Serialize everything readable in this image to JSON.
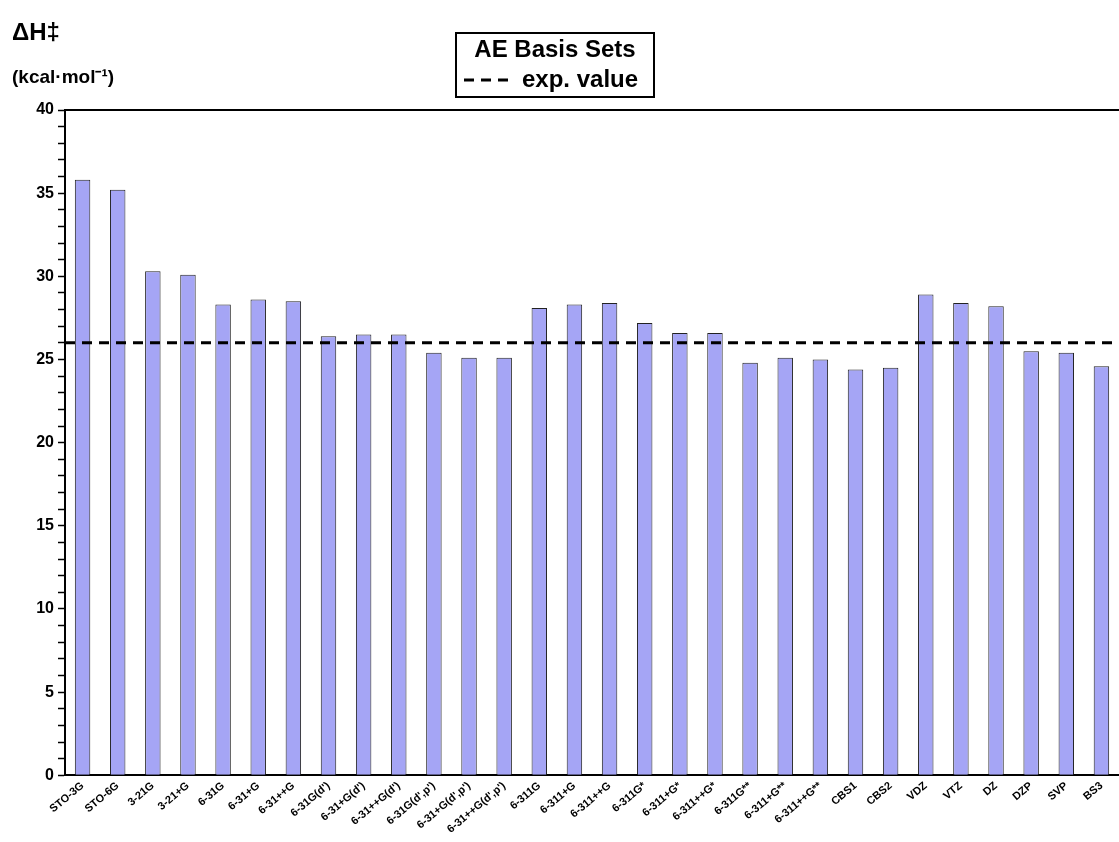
{
  "chart_data": {
    "type": "bar",
    "legend_title": "AE Basis Sets",
    "ylabel": "ΔH‡ (kcal·mol⁻¹)",
    "categories": [
      "STO-3G",
      "STO-6G",
      "3-21G",
      "3-21+G",
      "6-31G",
      "6-31+G",
      "6-31++G",
      "6-31G(d')",
      "6-31+G(d')",
      "6-31++G(d')",
      "6-31G(d',p')",
      "6-31+G(d',p')",
      "6-31++G(d',p')",
      "6-311G",
      "6-311+G",
      "6-311++G",
      "6-311G*",
      "6-311+G*",
      "6-311++G*",
      "6-311G**",
      "6-311+G**",
      "6-311++G**",
      "CBS1",
      "CBS2",
      "VDZ",
      "VTZ",
      "DZ",
      "DZP",
      "SVP",
      "BS3"
    ],
    "values": [
      35.8,
      35.2,
      30.3,
      30.1,
      28.3,
      28.6,
      28.5,
      26.4,
      26.5,
      26.5,
      25.4,
      25.1,
      25.1,
      28.1,
      28.3,
      28.4,
      27.2,
      26.6,
      26.6,
      24.8,
      25.1,
      25.0,
      24.4,
      24.5,
      28.9,
      28.4,
      28.2,
      25.5,
      25.4,
      24.6
    ],
    "color": "#a5a5f5",
    "ylim": [
      0,
      40
    ],
    "yticks": [
      0,
      {
        "value": 1,
        "label": null
      },
      {
        "value": 2,
        "label": null
      },
      {
        "value": 3,
        "label": null
      },
      {
        "value": 4,
        "label": null
      },
      5,
      {
        "value": 6,
        "label": null
      },
      {
        "value": 7,
        "label": null
      },
      {
        "value": 8,
        "label": null
      },
      {
        "value": 9,
        "label": null
      },
      10,
      {
        "value": 11,
        "label": null
      },
      {
        "value": 12,
        "label": null
      },
      {
        "value": 13,
        "label": null
      },
      {
        "value": 14,
        "label": null
      },
      15,
      {
        "value": 16,
        "label": null
      },
      {
        "value": 17,
        "label": null
      },
      {
        "value": 18,
        "label": null
      },
      {
        "value": 19,
        "label": null
      },
      20,
      {
        "value": 21,
        "label": null
      },
      {
        "value": 22,
        "label": null
      },
      {
        "value": 23,
        "label": null
      },
      {
        "value": 24,
        "label": null
      },
      25,
      {
        "value": 26,
        "label": null
      },
      {
        "value": 27,
        "label": null
      },
      {
        "value": 28,
        "label": null
      },
      {
        "value": 29,
        "label": null
      },
      30,
      {
        "value": 31,
        "label": null
      },
      {
        "value": 32,
        "label": null
      },
      {
        "value": 33,
        "label": null
      },
      {
        "value": 34,
        "label": null
      },
      35,
      {
        "value": 36,
        "label": null
      },
      {
        "value": 37,
        "label": null
      },
      {
        "value": 38,
        "label": null
      },
      {
        "value": 39,
        "label": null
      },
      40
    ],
    "ref_lines": [
      {
        "axis": "y",
        "value": 26.0,
        "label": "exp. value",
        "color": "#000000",
        "line_style": "dashed"
      }
    ],
    "legend": "top",
    "grid": false
  }
}
